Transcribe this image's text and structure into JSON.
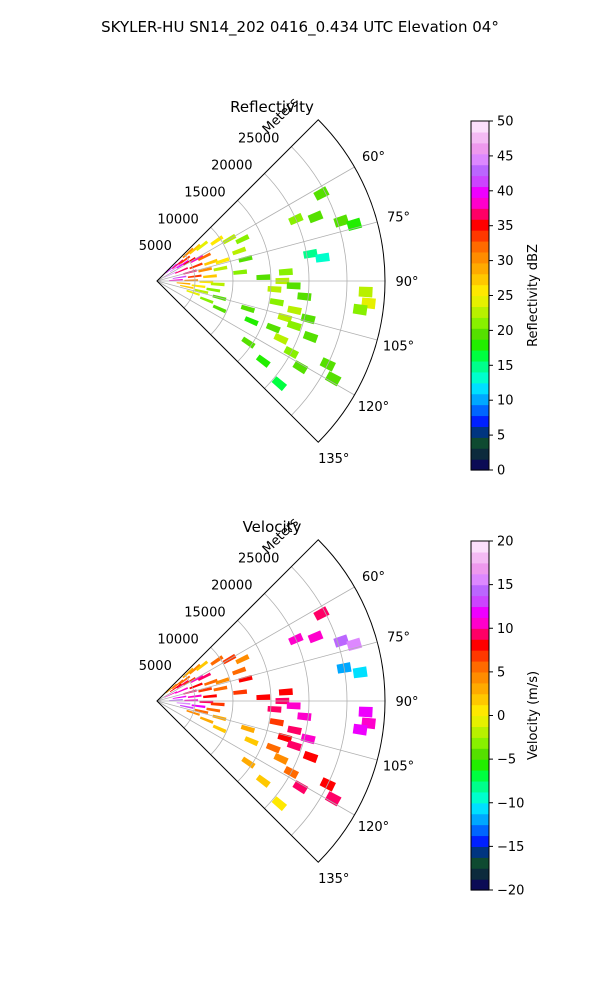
{
  "figure": {
    "title": "SKYLER-HU  SN14_202  0416_0.434 UTC Elevation 04°"
  },
  "chart_data": [
    {
      "type": "heatmap",
      "projection": "polar-sector",
      "title": "Reflectivity",
      "range_label": "Meters",
      "range_ticks": [
        5000,
        10000,
        15000,
        20000,
        25000
      ],
      "range_max": 30000,
      "azimuth_ticks": [
        "60°",
        "75°",
        "90°",
        "105°",
        "120°",
        "135°"
      ],
      "azimuth_tick_values": [
        60,
        75,
        90,
        105,
        120,
        135
      ],
      "azimuth_range": [
        45,
        135
      ],
      "grid": true,
      "colorbar": {
        "label": "Reflectivity dBZ",
        "min": 0,
        "max": 50,
        "ticks": [
          0,
          5,
          10,
          15,
          20,
          25,
          30,
          35,
          40,
          45,
          50
        ],
        "tick_labels": [
          "0",
          "5",
          "10",
          "15",
          "20",
          "25",
          "30",
          "35",
          "40",
          "45",
          "50"
        ],
        "colors": [
          "#0b0b55",
          "#0d2a3c",
          "#0f4a30",
          "#003580",
          "#0020ff",
          "#0066ff",
          "#00a8ff",
          "#00e0ff",
          "#00ffcc",
          "#00ff8c",
          "#00ff40",
          "#22ee00",
          "#55e000",
          "#88f000",
          "#b8f000",
          "#e6f000",
          "#ffe800",
          "#ffc800",
          "#ffaa00",
          "#ff8c00",
          "#ff6a00",
          "#ff3800",
          "#ff0000",
          "#ff0066",
          "#ff00cc",
          "#ee00ff",
          "#cc44ff",
          "#bb66ff",
          "#dd88ff",
          "#ee99ee",
          "#f4bbf4",
          "#fbe0fb"
        ]
      },
      "cells": [
        {
          "az": 47,
          "r": 1500,
          "v": 38
        },
        {
          "az": 49,
          "r": 2500,
          "v": 42
        },
        {
          "az": 51,
          "r": 3500,
          "v": 36
        },
        {
          "az": 53,
          "r": 4500,
          "v": 34
        },
        {
          "az": 48,
          "r": 5500,
          "v": 30
        },
        {
          "az": 50,
          "r": 6500,
          "v": 27
        },
        {
          "az": 52,
          "r": 7500,
          "v": 24
        },
        {
          "az": 55,
          "r": 3000,
          "v": 45
        },
        {
          "az": 57,
          "r": 4000,
          "v": 40
        },
        {
          "az": 59,
          "r": 5000,
          "v": 35
        },
        {
          "az": 61,
          "r": 6000,
          "v": 38
        },
        {
          "az": 63,
          "r": 7000,
          "v": 32
        },
        {
          "az": 65,
          "r": 2000,
          "v": 44
        },
        {
          "az": 67,
          "r": 3500,
          "v": 37
        },
        {
          "az": 69,
          "r": 5500,
          "v": 33
        },
        {
          "az": 71,
          "r": 7500,
          "v": 28
        },
        {
          "az": 73,
          "r": 9000,
          "v": 25
        },
        {
          "az": 75,
          "r": 4500,
          "v": 36
        },
        {
          "az": 77,
          "r": 6500,
          "v": 30
        },
        {
          "az": 79,
          "r": 8500,
          "v": 22
        },
        {
          "az": 81,
          "r": 3000,
          "v": 41
        },
        {
          "az": 83,
          "r": 5000,
          "v": 33
        },
        {
          "az": 85,
          "r": 7000,
          "v": 27
        },
        {
          "az": 87,
          "r": 2500,
          "v": 39
        },
        {
          "az": 89,
          "r": 4500,
          "v": 31
        },
        {
          "az": 91,
          "r": 6500,
          "v": 26
        },
        {
          "az": 93,
          "r": 8000,
          "v": 23
        },
        {
          "az": 95,
          "r": 3500,
          "v": 29
        },
        {
          "az": 97,
          "r": 5500,
          "v": 25
        },
        {
          "az": 99,
          "r": 7500,
          "v": 21
        },
        {
          "az": 101,
          "r": 4000,
          "v": 27
        },
        {
          "az": 103,
          "r": 6000,
          "v": 23
        },
        {
          "az": 105,
          "r": 8500,
          "v": 20
        },
        {
          "az": 108,
          "r": 5000,
          "v": 24
        },
        {
          "az": 111,
          "r": 7000,
          "v": 21
        },
        {
          "az": 114,
          "r": 9000,
          "v": 19
        },
        {
          "az": 56,
          "r": 9500,
          "v": 26
        },
        {
          "az": 60,
          "r": 11000,
          "v": 23
        },
        {
          "az": 64,
          "r": 12500,
          "v": 21
        },
        {
          "az": 70,
          "r": 11500,
          "v": 22
        },
        {
          "az": 76,
          "r": 12000,
          "v": 20
        },
        {
          "az": 84,
          "r": 11000,
          "v": 21
        },
        {
          "az": 88,
          "r": 14000,
          "v": 19
        },
        {
          "az": 90,
          "r": 16500,
          "v": 22
        },
        {
          "az": 92,
          "r": 18000,
          "v": 20
        },
        {
          "az": 86,
          "r": 17000,
          "v": 21
        },
        {
          "az": 94,
          "r": 15500,
          "v": 23
        },
        {
          "az": 96,
          "r": 19500,
          "v": 19
        },
        {
          "az": 100,
          "r": 16000,
          "v": 21
        },
        {
          "az": 102,
          "r": 18500,
          "v": 22
        },
        {
          "az": 104,
          "r": 20500,
          "v": 20
        },
        {
          "az": 106,
          "r": 17500,
          "v": 23
        },
        {
          "az": 108,
          "r": 19000,
          "v": 21
        },
        {
          "az": 110,
          "r": 21500,
          "v": 19
        },
        {
          "az": 112,
          "r": 16500,
          "v": 20
        },
        {
          "az": 115,
          "r": 18000,
          "v": 22
        },
        {
          "az": 118,
          "r": 20000,
          "v": 21
        },
        {
          "az": 121,
          "r": 22000,
          "v": 19
        },
        {
          "az": 107,
          "r": 12500,
          "v": 20
        },
        {
          "az": 113,
          "r": 13500,
          "v": 18
        },
        {
          "az": 66,
          "r": 20000,
          "v": 21
        },
        {
          "az": 68,
          "r": 22500,
          "v": 20
        },
        {
          "az": 62,
          "r": 24500,
          "v": 19
        },
        {
          "az": 72,
          "r": 25500,
          "v": 20
        },
        {
          "az": 74,
          "r": 27000,
          "v": 18
        },
        {
          "az": 93,
          "r": 27500,
          "v": 22
        },
        {
          "az": 96,
          "r": 28000,
          "v": 24
        },
        {
          "az": 98,
          "r": 27000,
          "v": 21
        },
        {
          "az": 119,
          "r": 26500,
          "v": 20
        },
        {
          "az": 116,
          "r": 25000,
          "v": 19
        },
        {
          "az": 80,
          "r": 20500,
          "v": 15
        },
        {
          "az": 82,
          "r": 22000,
          "v": 13
        },
        {
          "az": 124,
          "r": 14500,
          "v": 20
        },
        {
          "az": 127,
          "r": 17500,
          "v": 18
        },
        {
          "az": 130,
          "r": 21000,
          "v": 17
        }
      ]
    },
    {
      "type": "heatmap",
      "projection": "polar-sector",
      "title": "Velocity",
      "range_label": "Meters",
      "range_ticks": [
        5000,
        10000,
        15000,
        20000,
        25000
      ],
      "range_max": 30000,
      "azimuth_ticks": [
        "60°",
        "75°",
        "90°",
        "105°",
        "120°",
        "135°"
      ],
      "azimuth_tick_values": [
        60,
        75,
        90,
        105,
        120,
        135
      ],
      "azimuth_range": [
        45,
        135
      ],
      "grid": true,
      "colorbar": {
        "label": "Velocity (m/s)",
        "min": -20,
        "max": 20,
        "ticks": [
          -20,
          -15,
          -10,
          -5,
          0,
          5,
          10,
          15,
          20
        ],
        "tick_labels": [
          "−20",
          "−15",
          "−10",
          "−5",
          "0",
          "5",
          "10",
          "15",
          "20"
        ],
        "colors": [
          "#0b0b55",
          "#0d2a3c",
          "#0f4a30",
          "#003580",
          "#0020ff",
          "#0066ff",
          "#00a8ff",
          "#00e0ff",
          "#00ffcc",
          "#00ff8c",
          "#00ff40",
          "#22ee00",
          "#55e000",
          "#88f000",
          "#b8f000",
          "#e6f000",
          "#ffe800",
          "#ffc800",
          "#ffaa00",
          "#ff8c00",
          "#ff6a00",
          "#ff3800",
          "#ff0000",
          "#ff0066",
          "#ff00cc",
          "#ee00ff",
          "#cc44ff",
          "#bb66ff",
          "#dd88ff",
          "#ee99ee",
          "#f4bbf4",
          "#fbe0fb"
        ]
      },
      "cells": [
        {
          "az": 47,
          "r": 1500,
          "v": 2
        },
        {
          "az": 49,
          "r": 2500,
          "v": 4
        },
        {
          "az": 51,
          "r": 3500,
          "v": 5
        },
        {
          "az": 53,
          "r": 4500,
          "v": 6
        },
        {
          "az": 48,
          "r": 5500,
          "v": 3
        },
        {
          "az": 50,
          "r": 6500,
          "v": 4
        },
        {
          "az": 52,
          "r": 7500,
          "v": 2
        },
        {
          "az": 55,
          "r": 3000,
          "v": 8
        },
        {
          "az": 57,
          "r": 4000,
          "v": 9
        },
        {
          "az": 59,
          "r": 5000,
          "v": 7
        },
        {
          "az": 61,
          "r": 6000,
          "v": 10
        },
        {
          "az": 63,
          "r": 7000,
          "v": 9
        },
        {
          "az": 65,
          "r": 2000,
          "v": 11
        },
        {
          "az": 67,
          "r": 3500,
          "v": 10
        },
        {
          "az": 69,
          "r": 5500,
          "v": 8
        },
        {
          "az": 71,
          "r": 7500,
          "v": 6
        },
        {
          "az": 73,
          "r": 9000,
          "v": 4
        },
        {
          "az": 75,
          "r": 4500,
          "v": 9
        },
        {
          "az": 77,
          "r": 6500,
          "v": 7
        },
        {
          "az": 79,
          "r": 8500,
          "v": 5
        },
        {
          "az": 81,
          "r": 3000,
          "v": 12
        },
        {
          "az": 83,
          "r": 5000,
          "v": 10
        },
        {
          "az": 85,
          "r": 7000,
          "v": 8
        },
        {
          "az": 87,
          "r": 2500,
          "v": 14
        },
        {
          "az": 89,
          "r": 4500,
          "v": 11
        },
        {
          "az": 91,
          "r": 6500,
          "v": 9
        },
        {
          "az": 93,
          "r": 8000,
          "v": 7
        },
        {
          "az": 95,
          "r": 3500,
          "v": 15
        },
        {
          "az": 97,
          "r": 5500,
          "v": 12
        },
        {
          "az": 99,
          "r": 7500,
          "v": 6
        },
        {
          "az": 101,
          "r": 4000,
          "v": 13
        },
        {
          "az": 103,
          "r": 6000,
          "v": 5
        },
        {
          "az": 105,
          "r": 8500,
          "v": 3
        },
        {
          "az": 108,
          "r": 5000,
          "v": 4
        },
        {
          "az": 111,
          "r": 7000,
          "v": 3
        },
        {
          "az": 114,
          "r": 9000,
          "v": 2
        },
        {
          "az": 56,
          "r": 9500,
          "v": 5
        },
        {
          "az": 60,
          "r": 11000,
          "v": 7
        },
        {
          "az": 64,
          "r": 12500,
          "v": 4
        },
        {
          "az": 70,
          "r": 11500,
          "v": 6
        },
        {
          "az": 76,
          "r": 12000,
          "v": 8
        },
        {
          "az": 84,
          "r": 11000,
          "v": 7
        },
        {
          "az": 88,
          "r": 14000,
          "v": 8
        },
        {
          "az": 90,
          "r": 16500,
          "v": 9
        },
        {
          "az": 92,
          "r": 18000,
          "v": 10
        },
        {
          "az": 86,
          "r": 17000,
          "v": 8
        },
        {
          "az": 94,
          "r": 15500,
          "v": 9
        },
        {
          "az": 96,
          "r": 19500,
          "v": 11
        },
        {
          "az": 100,
          "r": 16000,
          "v": 7
        },
        {
          "az": 102,
          "r": 18500,
          "v": 9
        },
        {
          "az": 104,
          "r": 20500,
          "v": 10
        },
        {
          "az": 106,
          "r": 17500,
          "v": 8
        },
        {
          "az": 108,
          "r": 19000,
          "v": 9
        },
        {
          "az": 110,
          "r": 21500,
          "v": 8
        },
        {
          "az": 112,
          "r": 16500,
          "v": 5
        },
        {
          "az": 115,
          "r": 18000,
          "v": 4
        },
        {
          "az": 118,
          "r": 20000,
          "v": 6
        },
        {
          "az": 121,
          "r": 22000,
          "v": 9
        },
        {
          "az": 107,
          "r": 12500,
          "v": 3
        },
        {
          "az": 113,
          "r": 13500,
          "v": 2
        },
        {
          "az": 66,
          "r": 20000,
          "v": 10
        },
        {
          "az": 68,
          "r": 22500,
          "v": 11
        },
        {
          "az": 62,
          "r": 24500,
          "v": 9
        },
        {
          "az": 72,
          "r": 25500,
          "v": 14
        },
        {
          "az": 74,
          "r": 27000,
          "v": 15
        },
        {
          "az": 93,
          "r": 27500,
          "v": 12
        },
        {
          "az": 96,
          "r": 28000,
          "v": 11
        },
        {
          "az": 98,
          "r": 27000,
          "v": 12
        },
        {
          "az": 119,
          "r": 26500,
          "v": 9
        },
        {
          "az": 116,
          "r": 25000,
          "v": 8
        },
        {
          "az": 80,
          "r": 25000,
          "v": -12
        },
        {
          "az": 82,
          "r": 27000,
          "v": -11
        },
        {
          "az": 124,
          "r": 14500,
          "v": 3
        },
        {
          "az": 127,
          "r": 17500,
          "v": 2
        },
        {
          "az": 130,
          "r": 21000,
          "v": 1
        }
      ]
    }
  ]
}
